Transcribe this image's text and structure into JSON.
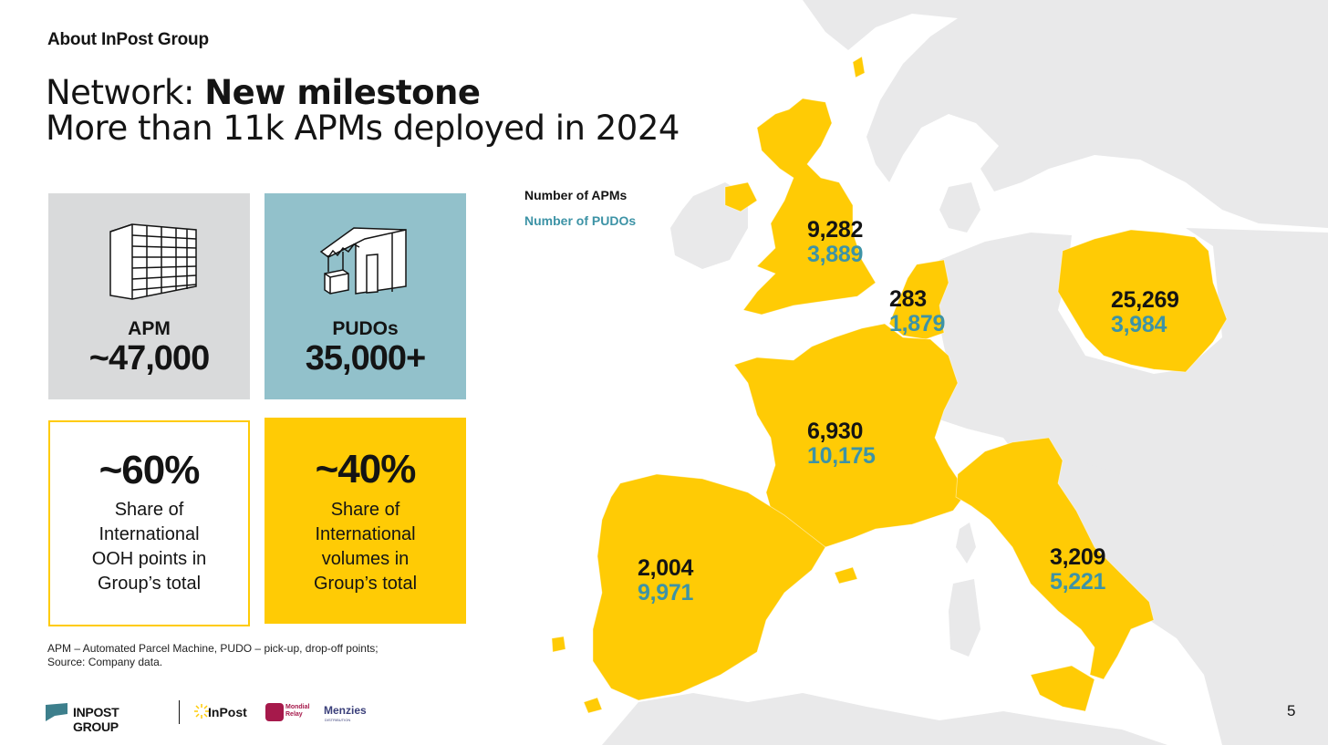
{
  "header": {
    "eyebrow": "About InPost Group",
    "title_regular": "Network: ",
    "title_bold": "New milestone",
    "subtitle": "More than 11k APMs deployed in 2024"
  },
  "legend": {
    "apm_label": "Number of APMs",
    "pudo_label": "Number of PUDOs"
  },
  "tiles": {
    "apm": {
      "label": "APM",
      "value": "~47,000"
    },
    "pudo": {
      "label": "PUDOs",
      "value": "35,000+"
    },
    "share": {
      "value": "~60%",
      "line1": "Share of",
      "line2": "International",
      "line3": "OOH points in",
      "line4": "Group’s total"
    },
    "volumes": {
      "value": "~40%",
      "line1": "Share of",
      "line2": "International",
      "line3": "volumes in",
      "line4": "Group’s total"
    }
  },
  "map_labels": {
    "uk": {
      "apm": "9,282",
      "pudo": "3,889"
    },
    "benelux": {
      "apm": "283",
      "pudo": "1,879"
    },
    "poland": {
      "apm": "25,269",
      "pudo": "3,984"
    },
    "france": {
      "apm": "6,930",
      "pudo": "10,175"
    },
    "spain": {
      "apm": "2,004",
      "pudo": "9,971"
    },
    "italy": {
      "apm": "3,209",
      "pudo": "5,221"
    }
  },
  "footnote": {
    "line1": "APM – Automated Parcel Machine, PUDO – pick-up, drop-off points;",
    "line2": "Source: Company data."
  },
  "logos": {
    "group": "INPOST GROUP",
    "inpost": "InPost",
    "mondial_line1": "Mondial",
    "mondial_line2": "Relay",
    "menzies": "Menzies",
    "menzies_sub": "DISTRIBUTION"
  },
  "page_number": "5",
  "colors": {
    "yellow": "#ffcb05",
    "teal": "#3d93a6",
    "land_grey": "#e9e9ea",
    "tile_grey": "#d9dadb",
    "tile_blue": "#92c1cb"
  }
}
